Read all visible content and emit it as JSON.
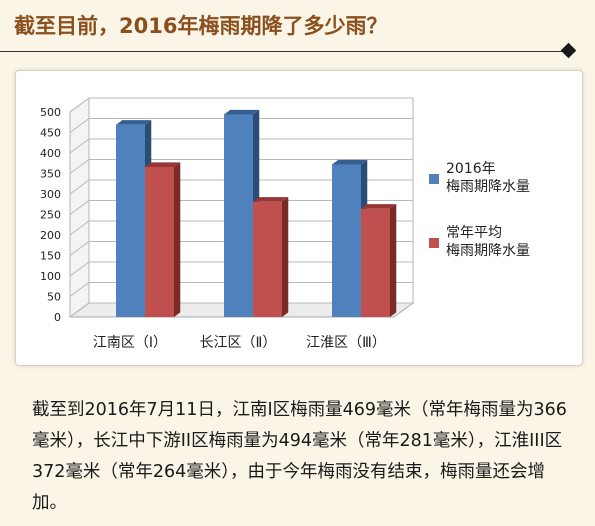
{
  "headline": {
    "title": "截至目前，2016年梅雨期降了多少雨？"
  },
  "chart_data": {
    "type": "bar",
    "categories": [
      "江南区（Ⅰ）",
      "长江区（Ⅱ）",
      "江淮区（Ⅲ）"
    ],
    "series": [
      {
        "name": "2016年\n梅雨期降水量",
        "values": [
          469,
          494,
          372
        ]
      },
      {
        "name": "常年平均\n梅雨期降水量",
        "values": [
          366,
          281,
          264
        ]
      }
    ],
    "ylim": [
      0,
      500
    ],
    "yticks": [
      0,
      50,
      100,
      150,
      200,
      250,
      300,
      350,
      400,
      450,
      500
    ],
    "grid": true,
    "legend": "right",
    "colors": {
      "series_0": "#4f81bd",
      "series_0_dark": "#365f91",
      "series_0_side": "#2a4d78",
      "series_1": "#c0504d",
      "series_1_dark": "#943634",
      "series_1_side": "#7a2a28"
    }
  },
  "caption": {
    "text": "截至到2016年7月11日，江南I区梅雨量469毫米（常年梅雨量为366毫米），长江中下游II区梅雨量为494毫米（常年281毫米），江淮III区372毫米（常年264毫米），由于今年梅雨没有结束，梅雨量还会增加。"
  }
}
